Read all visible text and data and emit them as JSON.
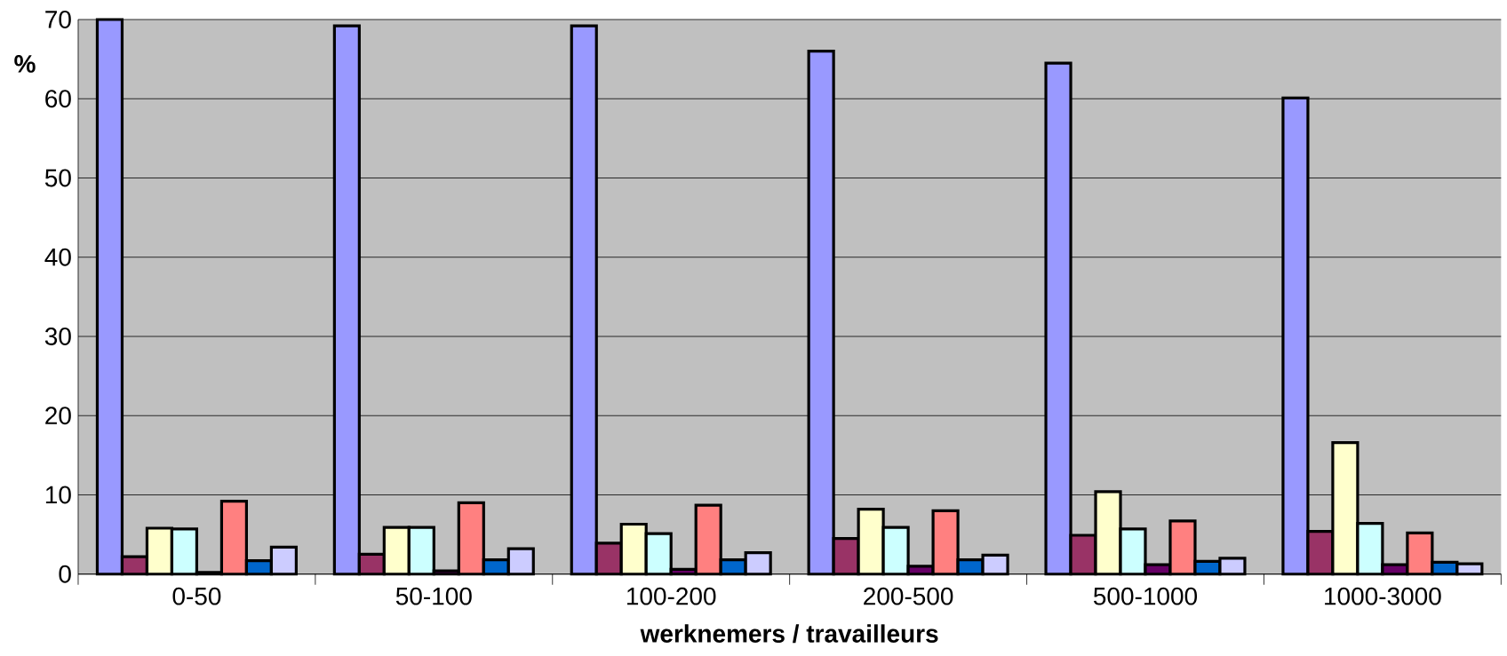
{
  "chart_data": {
    "type": "bar",
    "xlabel": "werknemers / travailleurs",
    "ylabel": "%",
    "categories": [
      "0-50",
      "50-100",
      "100-200",
      "200-500",
      "500-1000",
      "1000-3000"
    ],
    "series": [
      {
        "color": "#9999ff",
        "values": [
          70,
          69.2,
          69.2,
          66.0,
          64.5,
          60.1
        ]
      },
      {
        "color": "#993366",
        "values": [
          2.2,
          2.5,
          3.9,
          4.5,
          4.9,
          5.4
        ]
      },
      {
        "color": "#ffffcc",
        "values": [
          5.8,
          5.9,
          6.3,
          8.2,
          10.4,
          16.6
        ]
      },
      {
        "color": "#ccffff",
        "values": [
          5.7,
          5.9,
          5.1,
          5.9,
          5.7,
          6.4
        ]
      },
      {
        "color": "#660066",
        "values": [
          0.2,
          0.4,
          0.6,
          1.0,
          1.2,
          1.2
        ]
      },
      {
        "color": "#ff8080",
        "values": [
          9.2,
          9.0,
          8.7,
          8.0,
          6.7,
          5.2
        ]
      },
      {
        "color": "#0066cc",
        "values": [
          1.7,
          1.8,
          1.8,
          1.8,
          1.6,
          1.5
        ]
      },
      {
        "color": "#ccccff",
        "values": [
          3.4,
          3.2,
          2.7,
          2.4,
          2.0,
          1.3
        ]
      }
    ],
    "ylim": [
      0,
      70
    ],
    "yticks": [
      0,
      10,
      20,
      30,
      40,
      50,
      60,
      70
    ],
    "grid": "y"
  }
}
